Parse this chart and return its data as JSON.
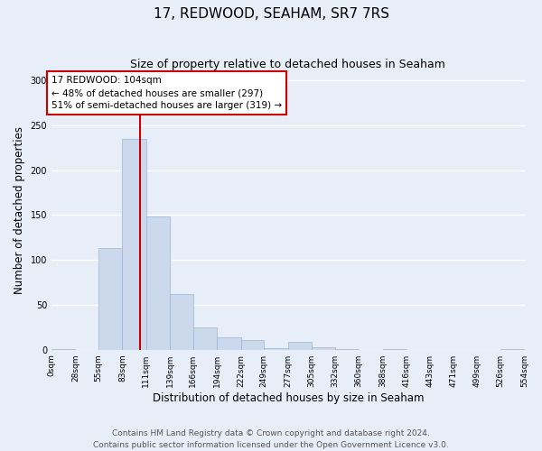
{
  "title": "17, REDWOOD, SEAHAM, SR7 7RS",
  "subtitle": "Size of property relative to detached houses in Seaham",
  "xlabel": "Distribution of detached houses by size in Seaham",
  "ylabel": "Number of detached properties",
  "bin_edges": [
    0,
    28,
    55,
    83,
    111,
    139,
    166,
    194,
    222,
    249,
    277,
    305,
    332,
    360,
    388,
    416,
    443,
    471,
    499,
    526,
    554
  ],
  "bar_heights": [
    1,
    0,
    113,
    235,
    148,
    62,
    25,
    14,
    11,
    2,
    9,
    3,
    1,
    0,
    1,
    0,
    0,
    0,
    0,
    1
  ],
  "bar_color": "#ccd9ed",
  "bar_edge_color": "#9ab4d8",
  "property_line_x": 104,
  "property_line_color": "#cc0000",
  "annotation_text": "17 REDWOOD: 104sqm\n← 48% of detached houses are smaller (297)\n51% of semi-detached houses are larger (319) →",
  "annotation_box_facecolor": "#ffffff",
  "annotation_box_edgecolor": "#cc0000",
  "ylim": [
    0,
    310
  ],
  "yticks": [
    0,
    50,
    100,
    150,
    200,
    250,
    300
  ],
  "footer_text": "Contains HM Land Registry data © Crown copyright and database right 2024.\nContains public sector information licensed under the Open Government Licence v3.0.",
  "background_color": "#e8eef8",
  "plot_background_color": "#e8eef8",
  "grid_color": "#ffffff",
  "title_fontsize": 11,
  "subtitle_fontsize": 9,
  "tick_label_fontsize": 6.5,
  "axis_label_fontsize": 8.5,
  "footer_fontsize": 6.5,
  "annotation_fontsize": 7.5
}
